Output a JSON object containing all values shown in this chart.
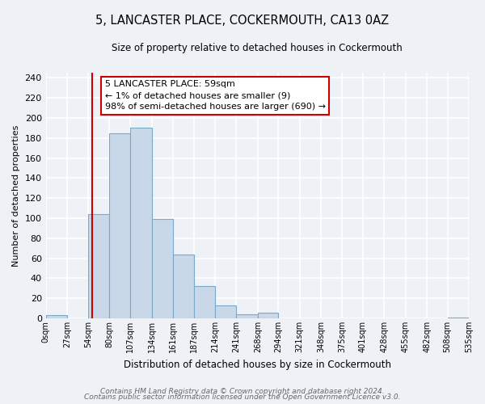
{
  "title": "5, LANCASTER PLACE, COCKERMOUTH, CA13 0AZ",
  "subtitle": "Size of property relative to detached houses in Cockermouth",
  "xlabel": "Distribution of detached houses by size in Cockermouth",
  "ylabel": "Number of detached properties",
  "bin_edges": [
    0,
    27,
    54,
    80,
    107,
    134,
    161,
    187,
    214,
    241,
    268,
    294,
    321,
    348,
    375,
    401,
    428,
    455,
    482,
    508,
    535
  ],
  "bar_heights": [
    3,
    0,
    104,
    185,
    190,
    99,
    64,
    32,
    13,
    4,
    6,
    0,
    0,
    0,
    0,
    0,
    0,
    0,
    0,
    1
  ],
  "bar_color": "#c8d8e8",
  "bar_edge_color": "#7aa8c8",
  "ylim": [
    0,
    245
  ],
  "yticks": [
    0,
    20,
    40,
    60,
    80,
    100,
    120,
    140,
    160,
    180,
    200,
    220,
    240
  ],
  "xtick_labels": [
    "0sqm",
    "27sqm",
    "54sqm",
    "80sqm",
    "107sqm",
    "134sqm",
    "161sqm",
    "187sqm",
    "214sqm",
    "241sqm",
    "268sqm",
    "294sqm",
    "321sqm",
    "348sqm",
    "375sqm",
    "401sqm",
    "428sqm",
    "455sqm",
    "482sqm",
    "508sqm",
    "535sqm"
  ],
  "vline_x": 59,
  "vline_color": "#cc0000",
  "annotation_box_text": "5 LANCASTER PLACE: 59sqm\n← 1% of detached houses are smaller (9)\n98% of semi-detached houses are larger (690) →",
  "annotation_box_color": "#ffffff",
  "annotation_box_edge_color": "#cc0000",
  "bg_color": "#eef2f7",
  "grid_color": "#ffffff",
  "footer_line1": "Contains HM Land Registry data © Crown copyright and database right 2024.",
  "footer_line2": "Contains public sector information licensed under the Open Government Licence v3.0."
}
